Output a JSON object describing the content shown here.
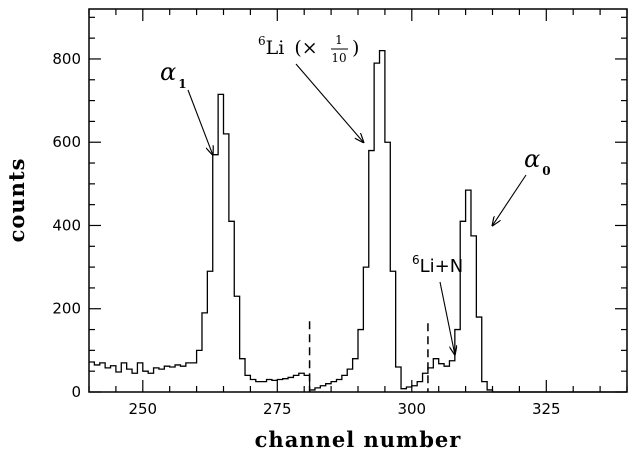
{
  "chart_data": {
    "type": "line",
    "xlabel": "channel number",
    "ylabel": "counts",
    "xlim": [
      240,
      340
    ],
    "ylim": [
      0,
      920
    ],
    "x_ticks": [
      250,
      275,
      300,
      325
    ],
    "y_ticks": [
      0,
      200,
      400,
      600,
      800
    ],
    "grid": false,
    "step_series": {
      "bin_start": 240,
      "bin_width": 1,
      "values": [
        72,
        65,
        70,
        58,
        63,
        48,
        70,
        55,
        45,
        70,
        50,
        45,
        58,
        55,
        62,
        60,
        65,
        62,
        70,
        70,
        100,
        190,
        290,
        570,
        715,
        620,
        410,
        230,
        80,
        40,
        30,
        25,
        25,
        30,
        28,
        30,
        32,
        35,
        40,
        45,
        40,
        5,
        10,
        15,
        20,
        25,
        30,
        40,
        55,
        80,
        150,
        300,
        580,
        790,
        820,
        600,
        290,
        60,
        8,
        12,
        15,
        25,
        45,
        58,
        80,
        68,
        62,
        75,
        150,
        410,
        485,
        375,
        180,
        25,
        5,
        0,
        0,
        0,
        0,
        0,
        0,
        0,
        0,
        0,
        0,
        0,
        0,
        0,
        0,
        0,
        0,
        0,
        0,
        0,
        0,
        0,
        0,
        0,
        0,
        0
      ]
    },
    "dashed_markers": [
      {
        "x": 281,
        "y_top": 170
      },
      {
        "x": 303,
        "y_top": 165
      }
    ],
    "annotations": [
      {
        "id": "alpha1",
        "symbol": "α",
        "subscript": "1",
        "arrow_to": {
          "x": 263,
          "y": 570
        }
      },
      {
        "id": "li6-scaled",
        "superscript": "6",
        "text": "Li",
        "scale_note": "(×",
        "frac_num": "1",
        "frac_den": "10",
        "scale_close": ")",
        "arrow_to": {
          "x": 291,
          "y": 600
        }
      },
      {
        "id": "li6n",
        "superscript": "6",
        "text": "Li+N",
        "arrow_to": {
          "x": 308,
          "y": 90
        }
      },
      {
        "id": "alpha0",
        "symbol": "α",
        "subscript": "0",
        "arrow_to": {
          "x": 315,
          "y": 400
        }
      }
    ]
  }
}
